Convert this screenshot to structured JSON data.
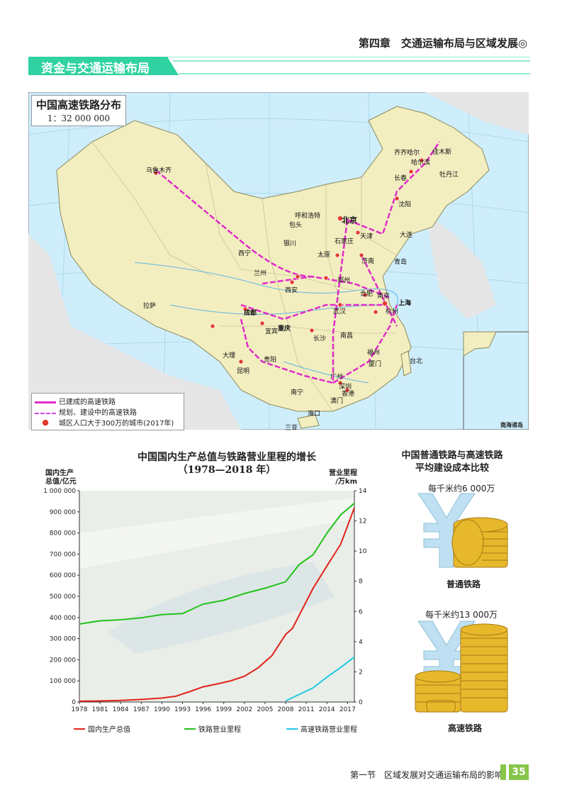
{
  "header": {
    "chapter": "第四章　交通运输布局与区域发展◎"
  },
  "section": {
    "title": "资金与交通运输布局"
  },
  "map": {
    "title": "中国高速铁路分布",
    "scale": "1：32 000 000",
    "inset_label": "南海诸岛",
    "legend": {
      "built": "已建成的高速铁路",
      "planned": "规划、建设中的高速铁路",
      "city": "城区人口大于300万的城市(2017年)"
    },
    "colors": {
      "land": "#f3eec0",
      "sea": "#cfeefb",
      "rail_built": "#e02cc8",
      "rail_planned": "#c84bdc",
      "city": "#e23b2e"
    },
    "cities": [
      {
        "name": "乌鲁木齐"
      },
      {
        "name": "拉萨"
      },
      {
        "name": "西宁"
      },
      {
        "name": "兰州"
      },
      {
        "name": "银川"
      },
      {
        "name": "呼和浩特"
      },
      {
        "name": "包头"
      },
      {
        "name": "北京"
      },
      {
        "name": "天津"
      },
      {
        "name": "石家庄"
      },
      {
        "name": "太原"
      },
      {
        "name": "济南"
      },
      {
        "name": "青岛"
      },
      {
        "name": "大连"
      },
      {
        "name": "沈阳"
      },
      {
        "name": "长春"
      },
      {
        "name": "哈尔滨"
      },
      {
        "name": "齐齐哈尔"
      },
      {
        "name": "佳木斯"
      },
      {
        "name": "牡丹江"
      },
      {
        "name": "郑州"
      },
      {
        "name": "西安"
      },
      {
        "name": "成都"
      },
      {
        "name": "重庆"
      },
      {
        "name": "武汉"
      },
      {
        "name": "合肥"
      },
      {
        "name": "南京"
      },
      {
        "name": "上海"
      },
      {
        "name": "杭州"
      },
      {
        "name": "长沙"
      },
      {
        "name": "南昌"
      },
      {
        "name": "福州"
      },
      {
        "name": "厦门"
      },
      {
        "name": "台北"
      },
      {
        "name": "广州"
      },
      {
        "name": "深圳"
      },
      {
        "name": "香港"
      },
      {
        "name": "澳门"
      },
      {
        "name": "南宁"
      },
      {
        "name": "昆明"
      },
      {
        "name": "贵阳"
      },
      {
        "name": "海口"
      },
      {
        "name": "三亚"
      },
      {
        "name": "大理"
      },
      {
        "name": "宜宾"
      }
    ]
  },
  "chart": {
    "title_line1": "中国国内生产总值与铁路营业里程的增长",
    "title_line2": "（1978—2018 年）",
    "left_axis_label_1": "国内生产",
    "left_axis_label_2": "总值/亿元",
    "right_axis_label_1": "营业里程",
    "right_axis_label_2": "/万km",
    "legend": {
      "gdp": "国内生产总值",
      "rail": "铁路营业里程",
      "hsr": "高速铁路营业里程"
    }
  },
  "chart_data": {
    "type": "line",
    "title": "中国国内生产总值与铁路营业里程的增长（1978—2018 年）",
    "xlabel": "",
    "x_ticks": [
      "1978",
      "1981",
      "1984",
      "1987",
      "1990",
      "1993",
      "1996",
      "1999",
      "2002",
      "2005",
      "2008",
      "2011",
      "2014",
      "2017"
    ],
    "y_left": {
      "label": "国内生产总值/亿元",
      "lim": [
        0,
        1000000
      ],
      "ticks": [
        "0",
        "100 000",
        "200 000",
        "300 000",
        "400 000",
        "500 000",
        "600 000",
        "700 000",
        "800 000",
        "900 000",
        "1 000 000"
      ]
    },
    "y_right": {
      "label": "营业里程/万km",
      "lim": [
        0,
        14
      ],
      "ticks": [
        "0",
        "2",
        "4",
        "6",
        "8",
        "10",
        "12",
        "14"
      ]
    },
    "series": [
      {
        "name": "国内生产总值",
        "axis": "left",
        "color": "#e2231a",
        "x": [
          1978,
          1981,
          1984,
          1987,
          1990,
          1992,
          1994,
          1996,
          1998,
          2000,
          2002,
          2004,
          2006,
          2008,
          2009,
          2010,
          2012,
          2014,
          2016,
          2018
        ],
        "y": [
          3700,
          4900,
          7300,
          12200,
          18900,
          27200,
          48600,
          71800,
          85200,
          100300,
          121700,
          161800,
          219400,
          319500,
          348500,
          412100,
          538600,
          643600,
          746400,
          919300
        ]
      },
      {
        "name": "铁路营业里程",
        "axis": "right",
        "color": "#23c21b",
        "x": [
          1978,
          1981,
          1984,
          1987,
          1990,
          1993,
          1996,
          1999,
          2002,
          2005,
          2008,
          2010,
          2012,
          2014,
          2016,
          2018
        ],
        "y": [
          5.17,
          5.38,
          5.45,
          5.58,
          5.79,
          5.86,
          6.49,
          6.74,
          7.19,
          7.54,
          7.97,
          9.12,
          9.76,
          11.18,
          12.4,
          13.17
        ]
      },
      {
        "name": "高速铁路营业里程",
        "axis": "right",
        "color": "#22c9e6",
        "x": [
          2008,
          2010,
          2012,
          2014,
          2016,
          2018
        ],
        "y": [
          0.07,
          0.51,
          0.94,
          1.65,
          2.29,
          2.99
        ]
      }
    ],
    "legend_position": "bottom"
  },
  "cost": {
    "title_line1": "中国普通铁路与高速铁路",
    "title_line2": "平均建设成本比较",
    "normal_value": "每千米约6 000万",
    "normal_name": "普通铁路",
    "hsr_value": "每千米约13 000万",
    "hsr_name": "高速铁路",
    "colors": {
      "yen": "#bfe0f2",
      "coin": "#e8b82c"
    }
  },
  "footer": {
    "text": "第一节　区域发展对交通运输布局的影响",
    "page": "35"
  }
}
